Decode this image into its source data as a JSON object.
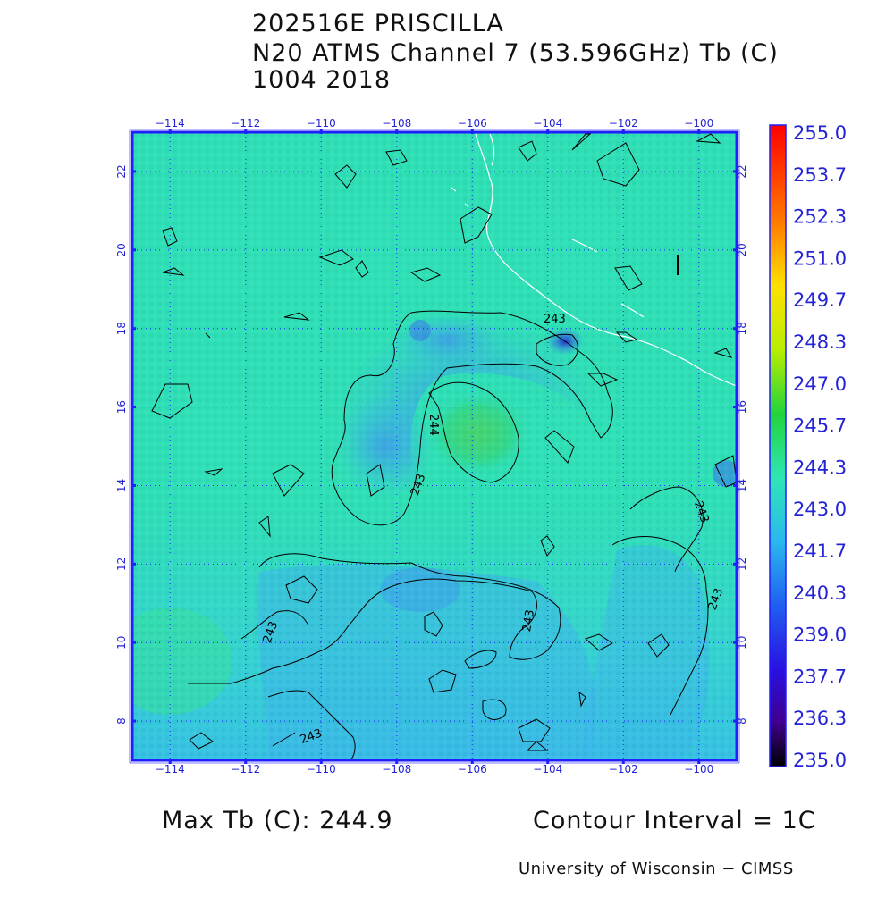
{
  "title": {
    "line1": "202516E PRISCILLA",
    "line2": "N20 ATMS Channel 7 (53.596GHz) Tb (C)",
    "line3": "1004 2018"
  },
  "map": {
    "lon_ticks": [
      "−114",
      "−112",
      "−110",
      "−108",
      "−106",
      "−104",
      "−102",
      "−100"
    ],
    "lon_values": [
      -114,
      -112,
      -110,
      -108,
      -106,
      -104,
      -102,
      -100
    ],
    "lat_ticks": [
      "8",
      "10",
      "12",
      "14",
      "16",
      "18",
      "20",
      "22"
    ],
    "lat_values": [
      8,
      10,
      12,
      14,
      16,
      18,
      20,
      22
    ],
    "lon_range": [
      -115.0,
      -99.0
    ],
    "lat_range": [
      7.0,
      23.0
    ],
    "grid": "dotted",
    "frame_color": "#1f1fff",
    "contour_labels": [
      "243",
      "244",
      "243",
      "243",
      "243",
      "243",
      "243",
      "243"
    ]
  },
  "colorbar": {
    "labels": [
      "255.0",
      "253.7",
      "252.3",
      "251.0",
      "249.7",
      "248.3",
      "247.0",
      "245.7",
      "244.3",
      "243.0",
      "241.7",
      "240.3",
      "239.0",
      "237.7",
      "236.3",
      "235.0"
    ],
    "min": 235.0,
    "max": 255.0
  },
  "footer": {
    "max_tb": "Max Tb (C): 244.9",
    "contour_interval": "Contour Interval = 1C",
    "credit": "University of Wisconsin − CIMSS"
  }
}
